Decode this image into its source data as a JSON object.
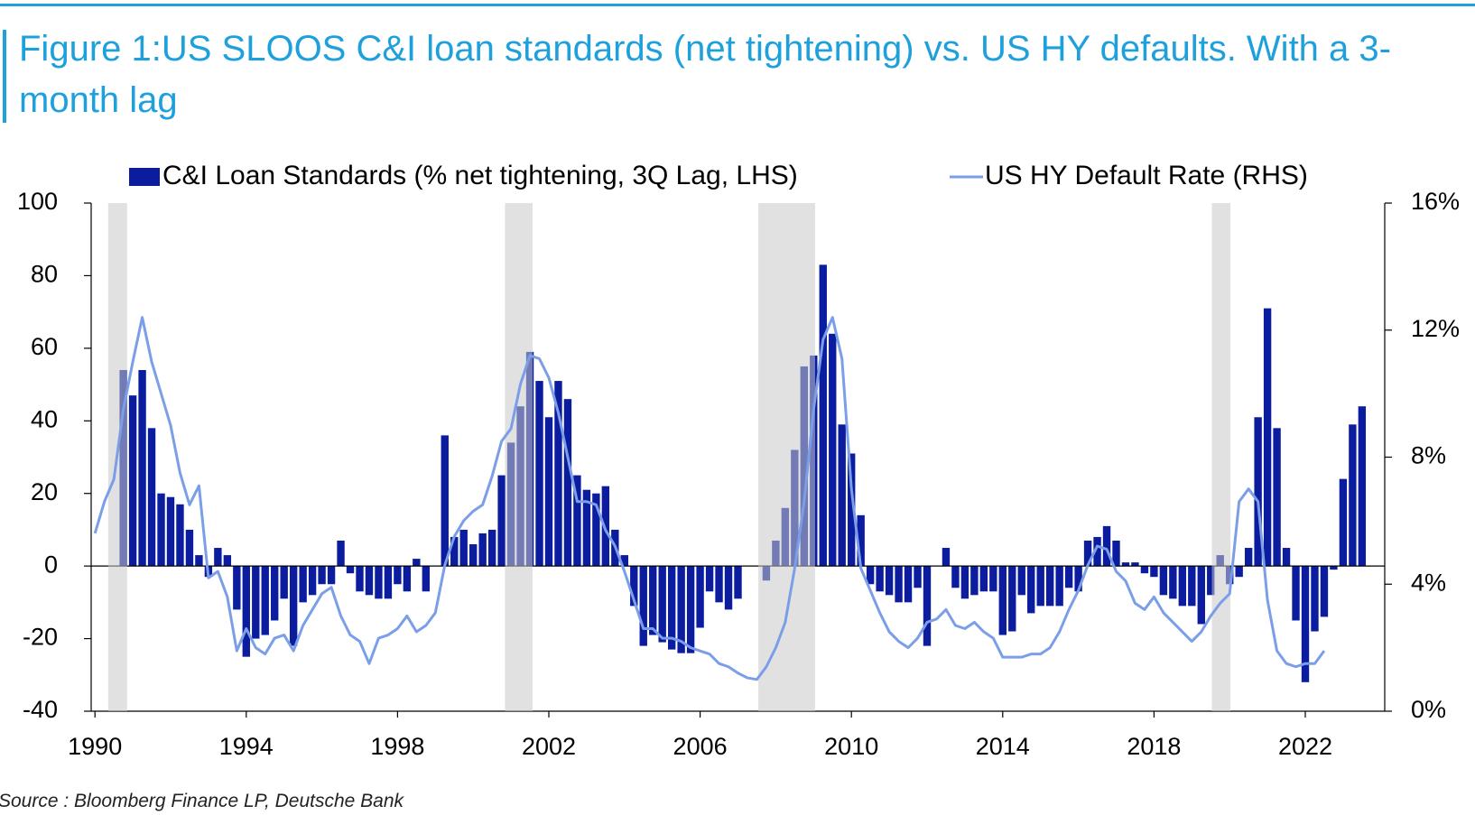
{
  "chart_data": {
    "type": "bar_line",
    "title": "Figure 1:US SLOOS C&I loan standards (net tightening) vs. US HY defaults. With a 3-month lag",
    "source": "Source : Bloomberg Finance LP, Deutsche Bank",
    "xlim": [
      1989.9,
      2024.1
    ],
    "xticks": [
      1990,
      1994,
      1998,
      2002,
      2006,
      2010,
      2014,
      2018,
      2022
    ],
    "ylim": [
      -40,
      100
    ],
    "yticks": [
      -40,
      -20,
      0,
      20,
      40,
      60,
      80,
      100
    ],
    "y2lim": [
      0,
      16
    ],
    "y2ticks": [
      {
        "value": 0,
        "label": "0%"
      },
      {
        "value": 4,
        "label": "4%"
      },
      {
        "value": 8,
        "label": "8%"
      },
      {
        "value": 12,
        "label": "12%"
      },
      {
        "value": 16,
        "label": "16%"
      }
    ],
    "shaded_ranges": [
      [
        1990.35,
        1990.85
      ],
      [
        2000.84,
        2001.57
      ],
      [
        2007.54,
        2009.04
      ],
      [
        2019.53,
        2020.02
      ]
    ],
    "shade_color": "#c8c8c8",
    "series": [
      {
        "name": "C&I Loan Standards (% net tightening, 3Q Lag, LHS)",
        "color": "#0b1d9e",
        "type": "bar",
        "x": [
          1990.75,
          1991,
          1991.25,
          1991.5,
          1991.75,
          1992,
          1992.25,
          1992.5,
          1992.75,
          1993,
          1993.25,
          1993.5,
          1993.75,
          1994,
          1994.25,
          1994.5,
          1994.75,
          1995,
          1995.25,
          1995.5,
          1995.75,
          1996,
          1996.25,
          1996.5,
          1996.75,
          1997,
          1997.25,
          1997.5,
          1997.75,
          1998,
          1998.25,
          1998.5,
          1998.75,
          1999,
          1999.25,
          1999.5,
          1999.75,
          2000,
          2000.25,
          2000.5,
          2000.75,
          2001,
          2001.25,
          2001.5,
          2001.75,
          2002,
          2002.25,
          2002.5,
          2002.75,
          2003,
          2003.25,
          2003.5,
          2003.75,
          2004,
          2004.25,
          2004.5,
          2004.75,
          2005,
          2005.25,
          2005.5,
          2005.75,
          2006,
          2006.25,
          2006.5,
          2006.75,
          2007,
          2007.25,
          2007.5,
          2007.75,
          2008,
          2008.25,
          2008.5,
          2008.75,
          2009,
          2009.25,
          2009.5,
          2009.75,
          2010,
          2010.25,
          2010.5,
          2010.75,
          2011,
          2011.25,
          2011.5,
          2011.75,
          2012,
          2012.25,
          2012.5,
          2012.75,
          2013,
          2013.25,
          2013.5,
          2013.75,
          2014,
          2014.25,
          2014.5,
          2014.75,
          2015,
          2015.25,
          2015.5,
          2015.75,
          2016,
          2016.25,
          2016.5,
          2016.75,
          2017,
          2017.25,
          2017.5,
          2017.75,
          2018,
          2018.25,
          2018.5,
          2018.75,
          2019,
          2019.25,
          2019.5,
          2019.75,
          2020,
          2020.25,
          2020.5,
          2020.75,
          2021,
          2021.25,
          2021.5,
          2021.75,
          2022,
          2022.25,
          2022.5,
          2022.75,
          2023,
          2023.25,
          2023.5
        ],
        "values": [
          54,
          47,
          54,
          38,
          20,
          19,
          17,
          10,
          3,
          -3,
          5,
          3,
          -12,
          -25,
          -20,
          -19,
          -15,
          -9,
          -22,
          -10,
          -8,
          -5,
          -5,
          7,
          -2,
          -7,
          -8,
          -9,
          -9,
          -5,
          -7,
          2,
          -7,
          0,
          36,
          8,
          10,
          6,
          9,
          10,
          25,
          34,
          44,
          59,
          51,
          41,
          51,
          46,
          25,
          21,
          20,
          22,
          10,
          3,
          -11,
          -22,
          -19,
          -21,
          -23,
          -24,
          -24,
          -17,
          -7,
          -10,
          -12,
          -9,
          0,
          0,
          -4,
          7,
          16,
          32,
          55,
          58,
          83,
          64,
          39,
          31,
          14,
          -5,
          -7,
          -8,
          -10,
          -10,
          -6,
          -22,
          0,
          5,
          -6,
          -9,
          -8,
          -7,
          -7,
          -19,
          -18,
          -8,
          -13,
          -11,
          -11,
          -11,
          -6,
          -7,
          7,
          8,
          11,
          7,
          1,
          1,
          -2,
          -3,
          -8,
          -9,
          -11,
          -11,
          -16,
          -8,
          3,
          -5,
          -3,
          5,
          41,
          71,
          38,
          5,
          -15,
          -32,
          -18,
          -14,
          -1,
          24,
          39,
          44
        ]
      },
      {
        "name": "US HY Default Rate (RHS)",
        "color": "#7b9ee8",
        "type": "line",
        "axis": "y2",
        "x": [
          1990,
          1990.25,
          1990.5,
          1990.75,
          1991,
          1991.25,
          1991.5,
          1991.75,
          1992,
          1992.25,
          1992.5,
          1992.75,
          1993,
          1993.25,
          1993.5,
          1993.75,
          1994,
          1994.25,
          1994.5,
          1994.75,
          1995,
          1995.25,
          1995.5,
          1995.75,
          1996,
          1996.25,
          1996.5,
          1996.75,
          1997,
          1997.25,
          1997.5,
          1997.75,
          1998,
          1998.25,
          1998.5,
          1998.75,
          1999,
          1999.25,
          1999.5,
          1999.75,
          2000,
          2000.25,
          2000.5,
          2000.75,
          2001,
          2001.25,
          2001.5,
          2001.75,
          2002,
          2002.25,
          2002.5,
          2002.75,
          2003,
          2003.25,
          2003.5,
          2003.75,
          2004,
          2004.25,
          2004.5,
          2004.75,
          2005,
          2005.25,
          2005.5,
          2005.75,
          2006,
          2006.25,
          2006.5,
          2006.75,
          2007,
          2007.25,
          2007.5,
          2007.75,
          2008,
          2008.25,
          2008.5,
          2008.75,
          2009,
          2009.25,
          2009.5,
          2009.75,
          2010,
          2010.25,
          2010.5,
          2010.75,
          2011,
          2011.25,
          2011.5,
          2011.75,
          2012,
          2012.25,
          2012.5,
          2012.75,
          2013,
          2013.25,
          2013.5,
          2013.75,
          2014,
          2014.25,
          2014.5,
          2014.75,
          2015,
          2015.25,
          2015.5,
          2015.75,
          2016,
          2016.25,
          2016.5,
          2016.75,
          2017,
          2017.25,
          2017.5,
          2017.75,
          2018,
          2018.25,
          2018.5,
          2018.75,
          2019,
          2019.25,
          2019.5,
          2019.75,
          2020,
          2020.25,
          2020.5,
          2020.75,
          2021,
          2021.25,
          2021.5,
          2021.75,
          2022,
          2022.25,
          2022.5
        ],
        "values": [
          5.6,
          6.6,
          7.3,
          9.5,
          11.0,
          12.4,
          11.0,
          10.0,
          9.0,
          7.5,
          6.5,
          7.1,
          4.2,
          4.4,
          3.6,
          1.9,
          2.6,
          2.0,
          1.8,
          2.3,
          2.4,
          1.9,
          2.7,
          3.2,
          3.7,
          3.9,
          3.0,
          2.4,
          2.2,
          1.5,
          2.3,
          2.4,
          2.6,
          3.0,
          2.5,
          2.7,
          3.1,
          4.6,
          5.5,
          6.0,
          6.3,
          6.5,
          7.4,
          8.5,
          8.9,
          10.3,
          11.2,
          11.1,
          10.5,
          9.4,
          8.0,
          6.6,
          6.6,
          6.5,
          5.7,
          5.2,
          4.4,
          3.5,
          2.6,
          2.6,
          2.3,
          2.3,
          2.2,
          2.0,
          1.9,
          1.8,
          1.5,
          1.4,
          1.2,
          1.05,
          1.0,
          1.4,
          2.0,
          2.8,
          4.5,
          6.6,
          9.5,
          11.7,
          12.4,
          11.1,
          7.0,
          4.5,
          3.8,
          3.1,
          2.5,
          2.2,
          2.0,
          2.3,
          2.8,
          2.9,
          3.2,
          2.7,
          2.6,
          2.8,
          2.5,
          2.3,
          1.7,
          1.7,
          1.7,
          1.8,
          1.8,
          2.0,
          2.5,
          3.2,
          3.8,
          4.6,
          5.2,
          5.1,
          4.4,
          4.1,
          3.4,
          3.2,
          3.6,
          3.1,
          2.8,
          2.5,
          2.2,
          2.5,
          3.0,
          3.4,
          3.7,
          6.6,
          7.0,
          6.6,
          3.5,
          1.9,
          1.5,
          1.4,
          1.5,
          1.5,
          1.9
        ]
      }
    ]
  }
}
